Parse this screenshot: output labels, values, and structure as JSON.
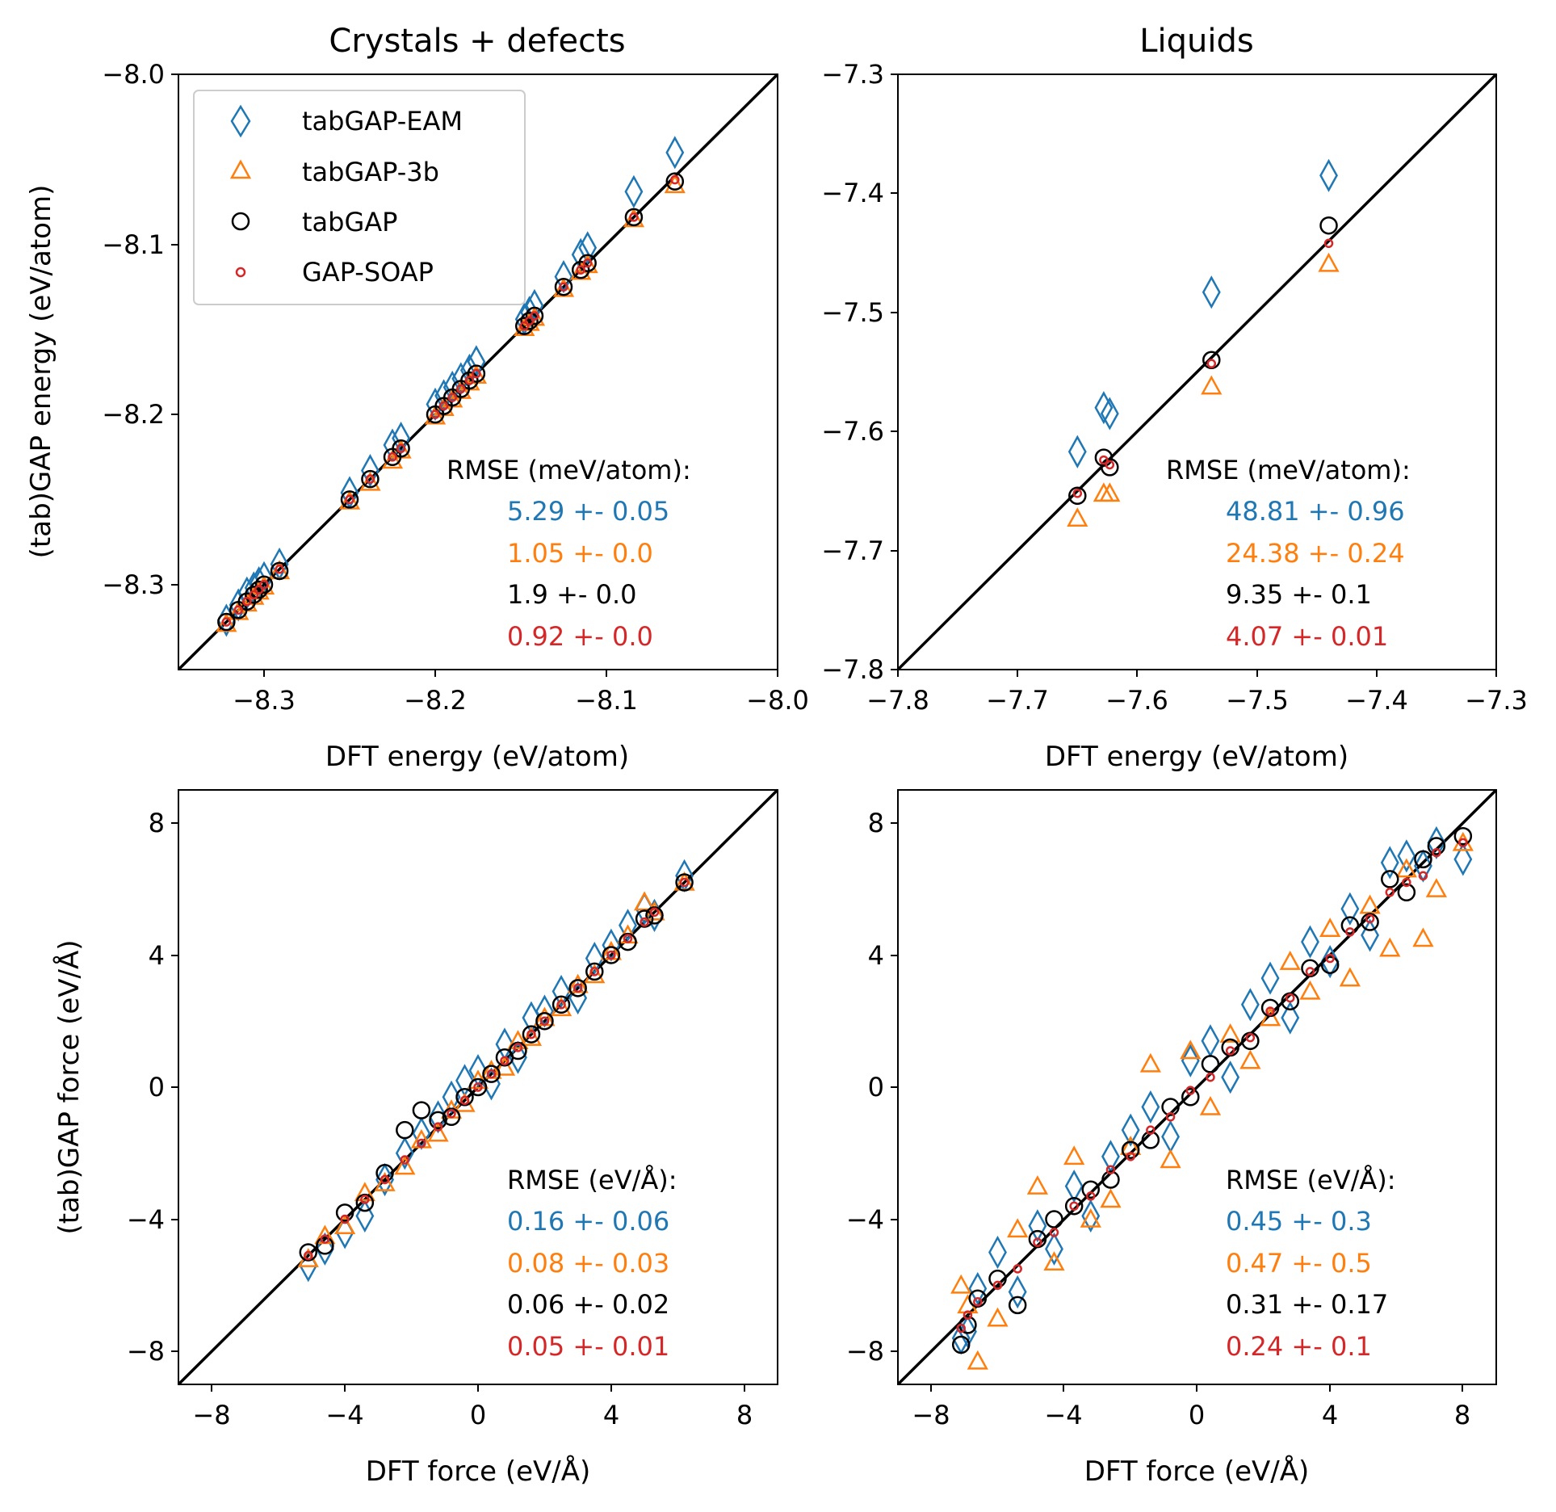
{
  "colors": {
    "eam": "#1f77b4",
    "b3": "#ff7f0e",
    "tab": "#000000",
    "soap": "#d62728"
  },
  "legend": {
    "items": [
      {
        "label": "tabGAP-EAM",
        "marker": "diamond",
        "color": "#1f77b4"
      },
      {
        "label": "tabGAP-3b",
        "marker": "triangle",
        "color": "#ff7f0e"
      },
      {
        "label": "tabGAP",
        "marker": "circle",
        "color": "#000000"
      },
      {
        "label": "GAP-SOAP",
        "marker": "small-circle",
        "color": "#d62728"
      }
    ]
  },
  "chart_data": [
    {
      "type": "scatter",
      "id": "crystals_energy",
      "title": "Crystals + defects",
      "xlabel": "DFT energy (eV/atom)",
      "ylabel": "(tab)GAP energy (eV/atom)",
      "xlim": [
        -8.35,
        -8.0
      ],
      "ylim": [
        -8.35,
        -8.0
      ],
      "xticks": [
        -8.3,
        -8.2,
        -8.1,
        -8.0
      ],
      "xtick_labels": [
        "−8.3",
        "−8.2",
        "−8.1",
        "−8.0"
      ],
      "yticks": [
        -8.0,
        -8.1,
        -8.2,
        -8.3
      ],
      "ytick_labels": [
        "−8.0",
        "−8.1",
        "−8.2",
        "−8.3"
      ],
      "rmse_title": "RMSE (meV/atom):",
      "rmse": [
        "5.29 +- 0.05",
        "1.05 +- 0.0",
        "1.9 +- 0.0",
        "0.92 +- 0.0"
      ],
      "x": [
        -8.322,
        -8.315,
        -8.31,
        -8.306,
        -8.303,
        -8.3,
        -8.291,
        -8.25,
        -8.238,
        -8.225,
        -8.22,
        -8.2,
        -8.195,
        -8.19,
        -8.185,
        -8.18,
        -8.176,
        -8.148,
        -8.145,
        -8.142,
        -8.125,
        -8.115,
        -8.111,
        -8.084,
        -8.06
      ],
      "series": [
        {
          "name": "tabGAP-EAM",
          "values": [
            -8.321,
            -8.312,
            -8.305,
            -8.302,
            -8.299,
            -8.296,
            -8.288,
            -8.246,
            -8.233,
            -8.218,
            -8.214,
            -8.194,
            -8.189,
            -8.184,
            -8.179,
            -8.174,
            -8.169,
            -8.144,
            -8.14,
            -8.136,
            -8.119,
            -8.106,
            -8.102,
            -8.069,
            -8.046
          ]
        },
        {
          "name": "tabGAP-3b",
          "values": [
            -8.323,
            -8.316,
            -8.311,
            -8.307,
            -8.304,
            -8.301,
            -8.292,
            -8.251,
            -8.24,
            -8.227,
            -8.221,
            -8.201,
            -8.196,
            -8.191,
            -8.186,
            -8.181,
            -8.177,
            -8.149,
            -8.146,
            -8.143,
            -8.126,
            -8.116,
            -8.112,
            -8.085,
            -8.065
          ]
        },
        {
          "name": "tabGAP",
          "values": [
            -8.322,
            -8.315,
            -8.31,
            -8.306,
            -8.303,
            -8.3,
            -8.292,
            -8.25,
            -8.238,
            -8.225,
            -8.22,
            -8.2,
            -8.195,
            -8.19,
            -8.185,
            -8.18,
            -8.176,
            -8.148,
            -8.145,
            -8.142,
            -8.125,
            -8.115,
            -8.111,
            -8.084,
            -8.063
          ]
        },
        {
          "name": "GAP-SOAP",
          "values": [
            -8.322,
            -8.315,
            -8.31,
            -8.306,
            -8.303,
            -8.3,
            -8.291,
            -8.25,
            -8.238,
            -8.225,
            -8.22,
            -8.2,
            -8.195,
            -8.19,
            -8.185,
            -8.18,
            -8.176,
            -8.148,
            -8.145,
            -8.142,
            -8.125,
            -8.115,
            -8.111,
            -8.084,
            -8.062
          ]
        }
      ]
    },
    {
      "type": "scatter",
      "id": "liquids_energy",
      "title": "Liquids",
      "xlabel": "DFT energy (eV/atom)",
      "ylabel": "",
      "xlim": [
        -7.8,
        -7.3
      ],
      "ylim": [
        -7.8,
        -7.3
      ],
      "xticks": [
        -7.8,
        -7.7,
        -7.6,
        -7.5,
        -7.4,
        -7.3
      ],
      "xtick_labels": [
        "−7.8",
        "−7.7",
        "−7.6",
        "−7.5",
        "−7.4",
        "−7.3"
      ],
      "yticks": [
        -7.3,
        -7.4,
        -7.5,
        -7.6,
        -7.7,
        -7.8
      ],
      "ytick_labels": [
        "−7.3",
        "−7.4",
        "−7.5",
        "−7.6",
        "−7.7",
        "−7.8"
      ],
      "rmse_title": "RMSE (meV/atom):",
      "rmse": [
        "48.81 +- 0.96",
        "24.38 +- 0.24",
        "9.35 +- 0.1",
        "4.07 +- 0.01"
      ],
      "x": [
        -7.65,
        -7.628,
        -7.623,
        -7.538,
        -7.44
      ],
      "series": [
        {
          "name": "tabGAP-EAM",
          "values": [
            -7.617,
            -7.58,
            -7.585,
            -7.483,
            -7.385
          ]
        },
        {
          "name": "tabGAP-3b",
          "values": [
            -7.673,
            -7.652,
            -7.652,
            -7.562,
            -7.459
          ]
        },
        {
          "name": "tabGAP",
          "values": [
            -7.654,
            -7.622,
            -7.63,
            -7.54,
            -7.427
          ]
        },
        {
          "name": "GAP-SOAP",
          "values": [
            -7.652,
            -7.624,
            -7.628,
            -7.543,
            -7.442
          ]
        }
      ]
    },
    {
      "type": "scatter",
      "id": "crystals_force",
      "title": "",
      "xlabel": "DFT force (eV/Å)",
      "ylabel": "(tab)GAP force (eV/Å)",
      "xlim": [
        -9,
        9
      ],
      "ylim": [
        -9,
        9
      ],
      "xticks": [
        -8,
        -4,
        0,
        4,
        8
      ],
      "xtick_labels": [
        "−8",
        "−4",
        "0",
        "4",
        "8"
      ],
      "yticks": [
        8,
        4,
        0,
        -4,
        -8
      ],
      "ytick_labels": [
        "8",
        "4",
        "0",
        "−4",
        "−8"
      ],
      "rmse_title": "RMSE (eV/Å):",
      "rmse": [
        "0.16 +- 0.06",
        "0.08 +- 0.03",
        "0.06 +- 0.02",
        "0.05 +- 0.01"
      ],
      "x": [
        -5.1,
        -4.6,
        -4.0,
        -3.4,
        -2.8,
        -2.2,
        -1.7,
        -1.2,
        -0.8,
        -0.4,
        0.0,
        0.4,
        0.8,
        1.2,
        1.6,
        2.0,
        2.5,
        3.0,
        3.5,
        4.0,
        4.5,
        5.0,
        5.3,
        6.2
      ],
      "series": [
        {
          "name": "tabGAP-EAM",
          "values": [
            -5.4,
            -4.9,
            -4.4,
            -3.9,
            -2.8,
            -2.0,
            -1.4,
            -0.9,
            -0.3,
            0.2,
            0.5,
            0.1,
            1.3,
            0.9,
            2.1,
            2.3,
            2.9,
            2.7,
            3.9,
            4.3,
            4.9,
            5.4,
            5.2,
            6.4
          ]
        },
        {
          "name": "tabGAP-3b",
          "values": [
            -5.2,
            -4.5,
            -4.2,
            -3.2,
            -2.9,
            -2.4,
            -1.6,
            -1.4,
            -0.7,
            -0.5,
            0.2,
            0.5,
            0.6,
            1.4,
            1.5,
            2.1,
            2.4,
            3.1,
            3.4,
            4.1,
            4.6,
            5.6,
            5.3,
            6.2
          ]
        },
        {
          "name": "tabGAP",
          "values": [
            -5.0,
            -4.8,
            -3.8,
            -3.5,
            -2.6,
            -1.3,
            -0.7,
            -1.0,
            -0.9,
            -0.3,
            0.0,
            0.4,
            0.9,
            1.1,
            1.6,
            2.0,
            2.5,
            3.0,
            3.5,
            4.0,
            4.4,
            5.1,
            5.2,
            6.2
          ]
        },
        {
          "name": "GAP-SOAP",
          "values": [
            -5.1,
            -4.6,
            -4.0,
            -3.4,
            -2.8,
            -2.2,
            -1.7,
            -1.2,
            -0.8,
            -0.4,
            0.0,
            0.4,
            0.8,
            1.2,
            1.6,
            2.0,
            2.5,
            3.0,
            3.5,
            4.0,
            4.5,
            5.0,
            5.3,
            6.2
          ]
        }
      ]
    },
    {
      "type": "scatter",
      "id": "liquids_force",
      "title": "",
      "xlabel": "DFT force (eV/Å)",
      "ylabel": "",
      "xlim": [
        -9,
        9
      ],
      "ylim": [
        -9,
        9
      ],
      "xticks": [
        -8,
        -4,
        0,
        4,
        8
      ],
      "xtick_labels": [
        "−8",
        "−4",
        "0",
        "4",
        "8"
      ],
      "yticks": [
        8,
        4,
        0,
        -4,
        -8
      ],
      "ytick_labels": [
        "8",
        "4",
        "0",
        "−4",
        "−8"
      ],
      "rmse_title": "RMSE (eV/Å):",
      "rmse": [
        "0.45 +- 0.3",
        "0.47 +- 0.5",
        "0.31 +- 0.17",
        "0.24 +- 0.1"
      ],
      "x": [
        -7.1,
        -6.9,
        -6.6,
        -6.0,
        -5.4,
        -4.8,
        -4.3,
        -3.7,
        -3.2,
        -2.6,
        -2.0,
        -1.4,
        -0.8,
        -0.2,
        0.4,
        1.0,
        1.6,
        2.2,
        2.8,
        3.4,
        4.0,
        4.6,
        5.2,
        5.8,
        6.3,
        6.8,
        7.2,
        8.0
      ],
      "series": [
        {
          "name": "tabGAP-EAM",
          "values": [
            -7.6,
            -7.4,
            -6.1,
            -5.0,
            -6.2,
            -4.2,
            -4.9,
            -3.0,
            -3.9,
            -2.1,
            -1.3,
            -0.6,
            -1.5,
            0.8,
            1.4,
            0.3,
            2.5,
            3.3,
            2.1,
            4.4,
            3.8,
            5.4,
            4.6,
            6.8,
            7.0,
            6.7,
            7.4,
            6.9
          ]
        },
        {
          "name": "tabGAP-3b",
          "values": [
            -6.0,
            -6.6,
            -8.3,
            -7.0,
            -4.3,
            -3.0,
            -5.3,
            -2.1,
            -4.0,
            -3.4,
            -1.8,
            0.7,
            -2.2,
            1.1,
            -0.6,
            1.6,
            0.8,
            2.1,
            3.8,
            2.9,
            4.8,
            3.3,
            5.5,
            4.2,
            6.6,
            4.5,
            6.0,
            7.4
          ]
        },
        {
          "name": "tabGAP",
          "values": [
            -7.8,
            -7.2,
            -6.4,
            -5.8,
            -6.6,
            -4.6,
            -4.0,
            -3.6,
            -3.1,
            -2.8,
            -1.9,
            -1.6,
            -0.6,
            -0.3,
            0.7,
            1.2,
            1.4,
            2.4,
            2.6,
            3.6,
            3.7,
            4.9,
            5.0,
            6.3,
            5.9,
            6.9,
            7.3,
            7.6
          ]
        },
        {
          "name": "GAP-SOAP",
          "values": [
            -7.3,
            -6.9,
            -6.5,
            -6.0,
            -5.5,
            -4.7,
            -4.4,
            -3.6,
            -3.3,
            -2.5,
            -2.1,
            -1.3,
            -0.9,
            -0.1,
            0.3,
            1.1,
            1.5,
            2.3,
            2.7,
            3.5,
            3.9,
            4.7,
            5.1,
            5.9,
            6.2,
            6.4,
            7.1,
            7.4
          ]
        }
      ]
    }
  ]
}
